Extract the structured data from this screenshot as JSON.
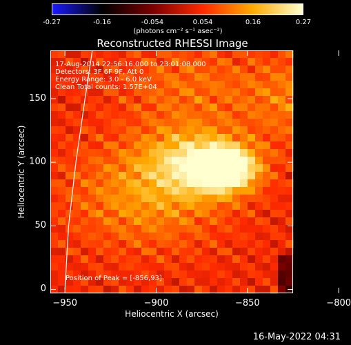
{
  "chart_data": {
    "type": "heatmap",
    "title": "Reconstructed RHESSI Image",
    "xlabel": "Heliocentric X (arcsec)",
    "ylabel": "Heliocentric Y (arcsec)",
    "xlim": [
      -958,
      -825
    ],
    "ylim": [
      -3,
      188
    ],
    "x_ticks": [
      -950,
      -900,
      -850,
      -800
    ],
    "y_ticks": [
      0,
      50,
      100,
      150
    ],
    "colorbar": {
      "ticks": [
        "-0.27",
        "-0.16",
        "-0.054",
        "0.054",
        "0.16",
        "0.27"
      ],
      "range": [
        -0.27,
        0.27
      ],
      "unit": "(photons cm⁻² s⁻¹ asec⁻²)",
      "colors": [
        "#1a1aff",
        "#000000",
        "#7a0000",
        "#ff2a00",
        "#ffaa00",
        "#ffffd0"
      ]
    },
    "info_lines": [
      "17-Aug-2014 22:56:16.000 to 23:01:08.000",
      "Detectors: 3F 6F 9F, Att 0",
      "Energy Range: 3.0 - 6.0 keV",
      "Clean    Total counts: 1.57E+04"
    ],
    "peak_label": "Position of Peak = [-856,93]",
    "peak": {
      "x": -856,
      "y": 93,
      "value": 0.27
    },
    "sources": [
      {
        "x": -862,
        "y": 95,
        "sigma": 12,
        "amp": 0.27
      },
      {
        "x": -880,
        "y": 100,
        "sigma": 18,
        "amp": 0.14
      },
      {
        "x": -905,
        "y": 75,
        "sigma": 30,
        "amp": 0.1
      },
      {
        "x": -820,
        "y": 150,
        "sigma": 25,
        "amp": 0.08
      },
      {
        "x": -885,
        "y": 160,
        "sigma": 25,
        "amp": 0.06
      }
    ],
    "limb_curve": [
      [
        -950,
        0
      ],
      [
        -948,
        50
      ],
      [
        -944,
        100
      ],
      [
        -939,
        150
      ],
      [
        -935,
        188
      ]
    ]
  },
  "timestamp": "16-May-2022 04:31"
}
